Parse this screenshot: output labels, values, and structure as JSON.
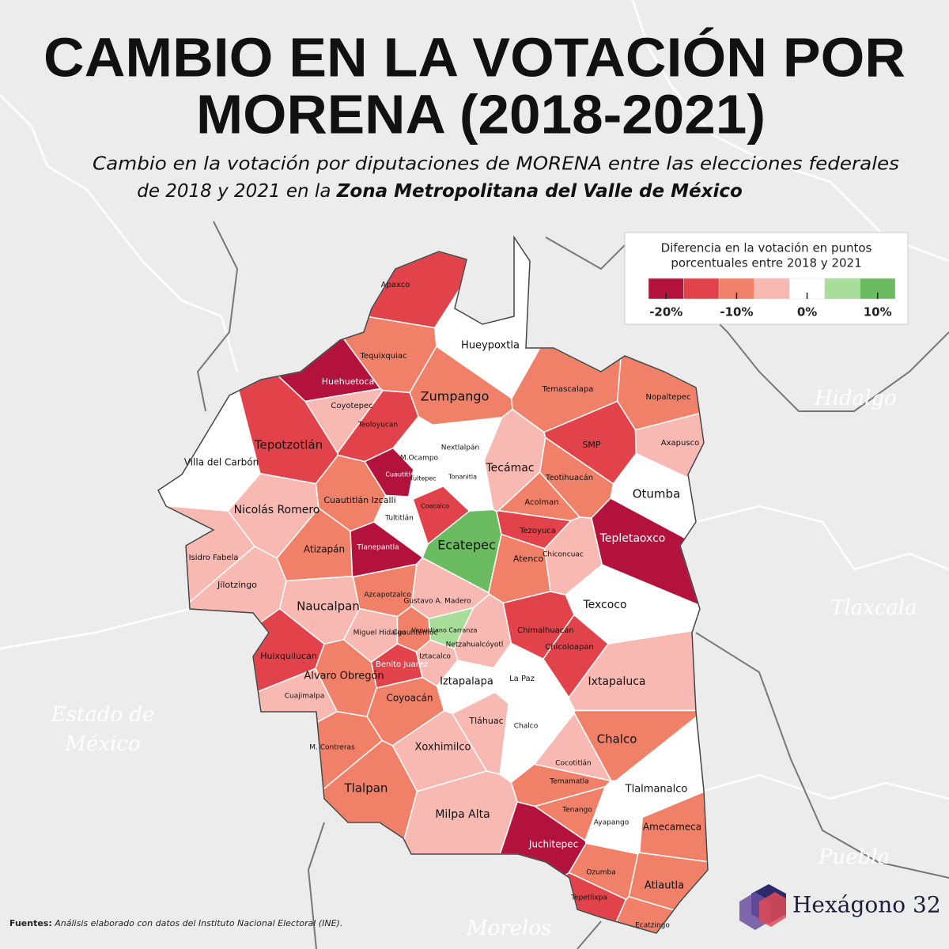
{
  "header": {
    "title_line1": "CAMBIO EN LA VOTACIÓN POR",
    "title_line2": "MORENA (2018-2021)",
    "subtitle_line1": "Cambio en la votación por diputaciones de MORENA entre las elecciones federales",
    "subtitle_line2": "de 2018 y 2021 en la ",
    "subtitle_bold": "Zona Metropolitana del Valle de México"
  },
  "legend": {
    "title_line1": "Diferencia en la votación en puntos",
    "title_line2": "porcentuales entre 2018 y 2021",
    "colors": [
      "#b3123c",
      "#e2434b",
      "#f08068",
      "#f9b9b3",
      "#ffffff",
      "#a9dd9a",
      "#6bbc61"
    ],
    "ticks": [
      {
        "value": -20,
        "label": "-20%"
      },
      {
        "value": -10,
        "label": "-10%"
      },
      {
        "value": 0,
        "label": "0%"
      },
      {
        "value": 10,
        "label": "10%"
      }
    ]
  },
  "states": [
    "Hidalgo",
    "Tlaxcala",
    "Puebla",
    "Morelos",
    "Estado de",
    "México"
  ],
  "regions": [
    {
      "name": "Apaxco",
      "color": "#e2434b"
    },
    {
      "name": "Hueypoxtla",
      "color": "#ffffff"
    },
    {
      "name": "Tequixquiac",
      "color": "#f08068"
    },
    {
      "name": "Huehuetoca",
      "color": "#b3123c"
    },
    {
      "name": "Zumpango",
      "color": "#f08068"
    },
    {
      "name": "Temascalapa",
      "color": "#f08068"
    },
    {
      "name": "Nopaltepec",
      "color": "#f08068"
    },
    {
      "name": "Coyotepec",
      "color": "#f9b9b3"
    },
    {
      "name": "Teoloyucan",
      "color": "#e2434b"
    },
    {
      "name": "Villa del Carbón",
      "color": "#ffffff"
    },
    {
      "name": "Tepotzotlán",
      "color": "#e2434b"
    },
    {
      "name": "Nextlalpán",
      "color": "#ffffff"
    },
    {
      "name": "SMP",
      "color": "#e2434b"
    },
    {
      "name": "Axapusco",
      "color": "#f9b9b3"
    },
    {
      "name": "M.Ocampo",
      "color": "#ffffff"
    },
    {
      "name": "Tecámac",
      "color": "#f9b9b3"
    },
    {
      "name": "Teotihuacán",
      "color": "#f08068"
    },
    {
      "name": "Otumba",
      "color": "#ffffff"
    },
    {
      "name": "Cuautitlán",
      "color": "#b3123c"
    },
    {
      "name": "Tultepec",
      "color": "#ffffff"
    },
    {
      "name": "Tonanitla",
      "color": "#ffffff"
    },
    {
      "name": "Cuautitlán Izcalli",
      "color": "#f08068"
    },
    {
      "name": "Nicolás Romero",
      "color": "#f9b9b3"
    },
    {
      "name": "Acolman",
      "color": "#f08068"
    },
    {
      "name": "Coacalco",
      "color": "#e2434b"
    },
    {
      "name": "Tultitlán",
      "color": "#ffffff"
    },
    {
      "name": "Ecatepec",
      "color": "#6bbc61"
    },
    {
      "name": "Tezoyuca",
      "color": "#e2434b"
    },
    {
      "name": "Tepletaoxco",
      "color": "#b3123c"
    },
    {
      "name": "Atizapán",
      "color": "#f08068"
    },
    {
      "name": "Tlanepantla",
      "color": "#b3123c"
    },
    {
      "name": "Isidro Fabela",
      "color": "#f9b9b3"
    },
    {
      "name": "Chiconcuac",
      "color": "#f9b9b3"
    },
    {
      "name": "Atenco",
      "color": "#f08068"
    },
    {
      "name": "Jilotzingo",
      "color": "#f9b9b3"
    },
    {
      "name": "Texcoco",
      "color": "#ffffff"
    },
    {
      "name": "Naucalpan",
      "color": "#f9b9b3"
    },
    {
      "name": "Azcapotzalco",
      "color": "#f08068"
    },
    {
      "name": "Gustavo A. Madero",
      "color": "#f9b9b3"
    },
    {
      "name": "Miguel Hidalgo",
      "color": "#f9b9b3"
    },
    {
      "name": "Cuauhtémoc",
      "color": "#f08068"
    },
    {
      "name": "Venustiano Carranza",
      "color": "#a9dd9a"
    },
    {
      "name": "Netzahualcóyotl",
      "color": "#f9b9b3"
    },
    {
      "name": "Chimalhuacán",
      "color": "#e2434b"
    },
    {
      "name": "Chicoloapan",
      "color": "#e2434b"
    },
    {
      "name": "Huixquilucan",
      "color": "#e2434b"
    },
    {
      "name": "Benito Juarez",
      "color": "#e2434b"
    },
    {
      "name": "Iztacalco",
      "color": "#f9b9b3"
    },
    {
      "name": "Alvaro Obregón",
      "color": "#f08068"
    },
    {
      "name": "Iztapalapa",
      "color": "#ffffff"
    },
    {
      "name": "La Paz",
      "color": "#ffffff"
    },
    {
      "name": "Ixtapaluca",
      "color": "#f9b9b3"
    },
    {
      "name": "Cuajimalpa",
      "color": "#f9b9b3"
    },
    {
      "name": "Coyoacán",
      "color": "#f08068"
    },
    {
      "name": "Tláhuac",
      "color": "#f9b9b3"
    },
    {
      "name": "Chalco",
      "color": "#ffffff"
    },
    {
      "name": "M. Contreras",
      "color": "#f08068"
    },
    {
      "name": "Xoxhimilco",
      "color": "#f9b9b3"
    },
    {
      "name": "Chalco",
      "color": "#f08068"
    },
    {
      "name": "Cocotitlán",
      "color": "#f9b9b3"
    },
    {
      "name": "Tlalpan",
      "color": "#f08068"
    },
    {
      "name": "Temamatla",
      "color": "#f08068"
    },
    {
      "name": "Tlalmanalco",
      "color": "#ffffff"
    },
    {
      "name": "Milpa Alta",
      "color": "#f9b9b3"
    },
    {
      "name": "Tenango",
      "color": "#f08068"
    },
    {
      "name": "Ayapango",
      "color": "#ffffff"
    },
    {
      "name": "Amecameca",
      "color": "#f08068"
    },
    {
      "name": "Juchitepec",
      "color": "#b3123c"
    },
    {
      "name": "Ozumba",
      "color": "#f08068"
    },
    {
      "name": "Atlautla",
      "color": "#f08068"
    },
    {
      "name": "Tepetlixpa",
      "color": "#e2434b"
    },
    {
      "name": "Ecatzingo",
      "color": "#f08068"
    }
  ],
  "footer": {
    "source_label": "Fuentes:",
    "source_text": " Análisis elaborado con datos del Instituto Nacional Electoral (INE).",
    "brand": "Hexágono 32"
  }
}
